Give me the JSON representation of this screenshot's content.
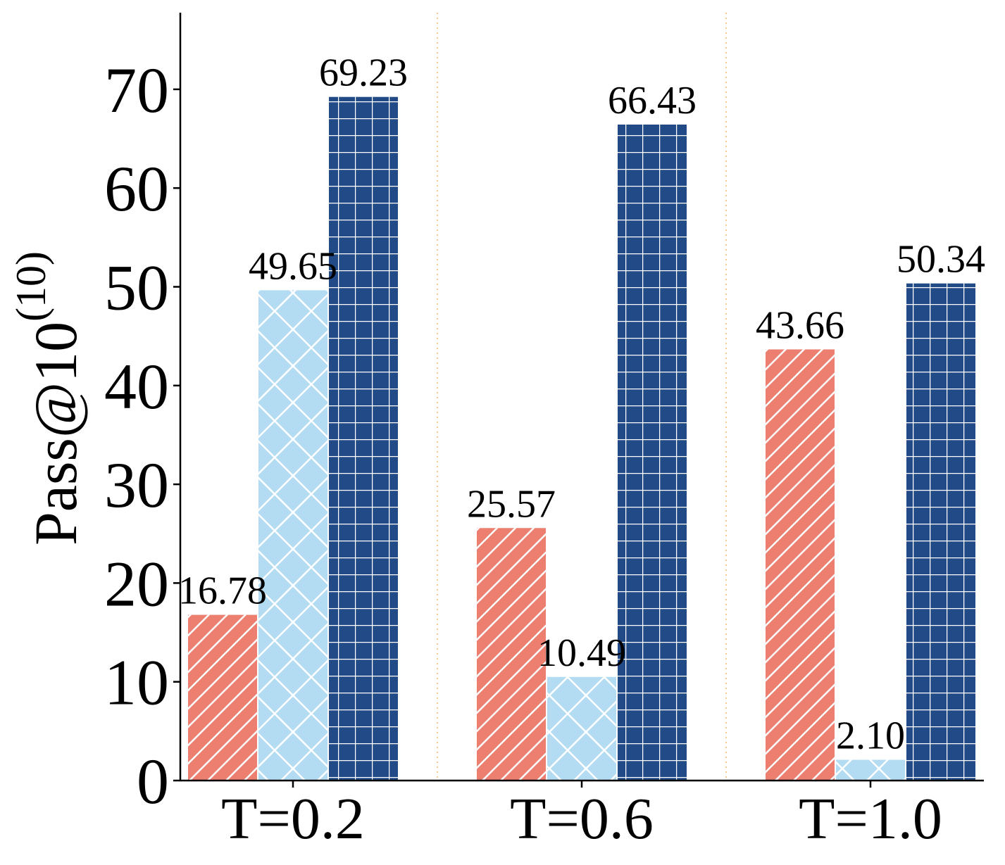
{
  "chart_data": {
    "type": "bar",
    "title": "",
    "xlabel": "",
    "ylabel": "Pass@10",
    "ylabel_superscript": "(10)",
    "categories": [
      "T=0.2",
      "T=0.6",
      "T=1.0"
    ],
    "ylim": [
      0,
      77
    ],
    "yticks": [
      0,
      10,
      20,
      30,
      40,
      50,
      60,
      70
    ],
    "grid": false,
    "legend": "none",
    "series": [
      {
        "color": "#EC7F70",
        "hatch": "diagonal",
        "values": [
          16.78,
          25.57,
          43.66
        ],
        "labels": [
          "16.78",
          "25.57",
          "43.66"
        ]
      },
      {
        "color": "#B3DCF3",
        "hatch": "crosshatch-diagonal",
        "values": [
          49.65,
          10.49,
          2.1
        ],
        "labels": [
          "49.65",
          "10.49",
          "2.10"
        ]
      },
      {
        "color": "#214A87",
        "hatch": "grid",
        "values": [
          69.23,
          66.43,
          50.34
        ],
        "labels": [
          "69.23",
          "66.43",
          "50.34"
        ]
      }
    ],
    "separator_color": "#F5C98B"
  }
}
